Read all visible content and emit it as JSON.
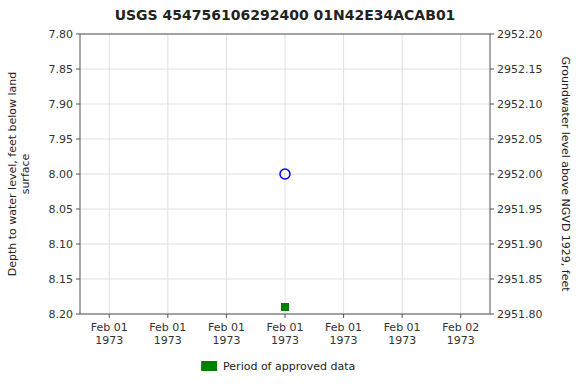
{
  "chart_data": {
    "type": "scatter",
    "title": "USGS 454756106292400 01N42E34ACAB01",
    "y_label": "Depth to water level, feet below land\n surface",
    "y2_label": "Groundwater level above NGVD 1929, feet",
    "categories": [
      "Feb 01\n1973",
      "Feb 01\n1973",
      "Feb 01\n1973",
      "Feb 01\n1973",
      "Feb 01\n1973",
      "Feb 01\n1973",
      "Feb 02\n1973"
    ],
    "series": [
      {
        "color": "blue",
        "marker": "circle-open",
        "values": [
          null,
          null,
          null,
          8.0,
          null,
          null,
          null
        ]
      },
      {
        "name": "Period of approved data",
        "color": "#008000",
        "marker": "square",
        "values": [
          null,
          null,
          null,
          8.19,
          null,
          null,
          null
        ]
      }
    ],
    "ylim": [
      8.2,
      7.8
    ],
    "yticks": [
      {
        "value": 7.8,
        "label": "7.80"
      },
      7.85,
      {
        "value": 7.9,
        "label": "7.90"
      },
      7.95,
      {
        "value": 8.0,
        "label": "8.00"
      },
      8.05,
      {
        "value": 8.1,
        "label": "8.10"
      },
      8.15,
      {
        "value": 8.2,
        "label": "8.20"
      }
    ],
    "y2lim": [
      2951.8,
      2952.2
    ],
    "y2ticks": [
      {
        "value": 2951.8,
        "label": "2951.80"
      },
      2951.85,
      {
        "value": 2951.9,
        "label": "2951.90"
      },
      2951.95,
      {
        "value": 2952.0,
        "label": "2952.00"
      },
      2952.05,
      {
        "value": 2952.1,
        "label": "2952.10"
      },
      2952.15,
      {
        "value": 2952.2,
        "label": "2952.20"
      }
    ],
    "grid": true,
    "legend": "bottom"
  }
}
